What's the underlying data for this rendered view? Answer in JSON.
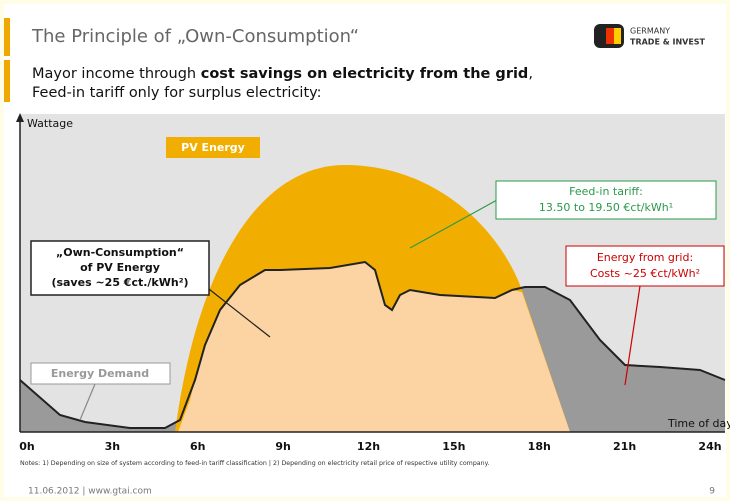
{
  "header": {
    "title": "The Principle of „Own-Consumption“",
    "logo": [
      "GERMANY",
      "TRADE & INVEST"
    ]
  },
  "subtitle": {
    "line1": [
      "Mayor income through ",
      "cost savings on electricity from the grid",
      ","
    ],
    "line2": "Feed-in tariff only for surplus electricity:"
  },
  "diagram": {
    "y_label": "Wattage",
    "x_label": "Time of day",
    "x_ticks": [
      "0h",
      "3h",
      "6h",
      "9h",
      "12h",
      "15h",
      "18h",
      "21h",
      "24h"
    ],
    "labels": {
      "pv": "PV Energy",
      "feed_in": [
        "Feed-in tariff:",
        "13.50 to 19.50 €ct/kWh¹"
      ],
      "own": [
        "„Own-Consumption“",
        "of PV Energy",
        "(saves ~25 €ct./kWh²)"
      ],
      "grid": [
        "Energy from grid:",
        "Costs ~25 €ct/kWh²"
      ],
      "demand": "Energy Demand"
    }
  },
  "notes": "Notes: 1) Depending on size of system according to feed-in tariff classification  | 2) Depending on electricity retail price of respective utility company.",
  "footer": {
    "left": "11.06.2012  |  www.gtai.com",
    "page": "9"
  }
}
